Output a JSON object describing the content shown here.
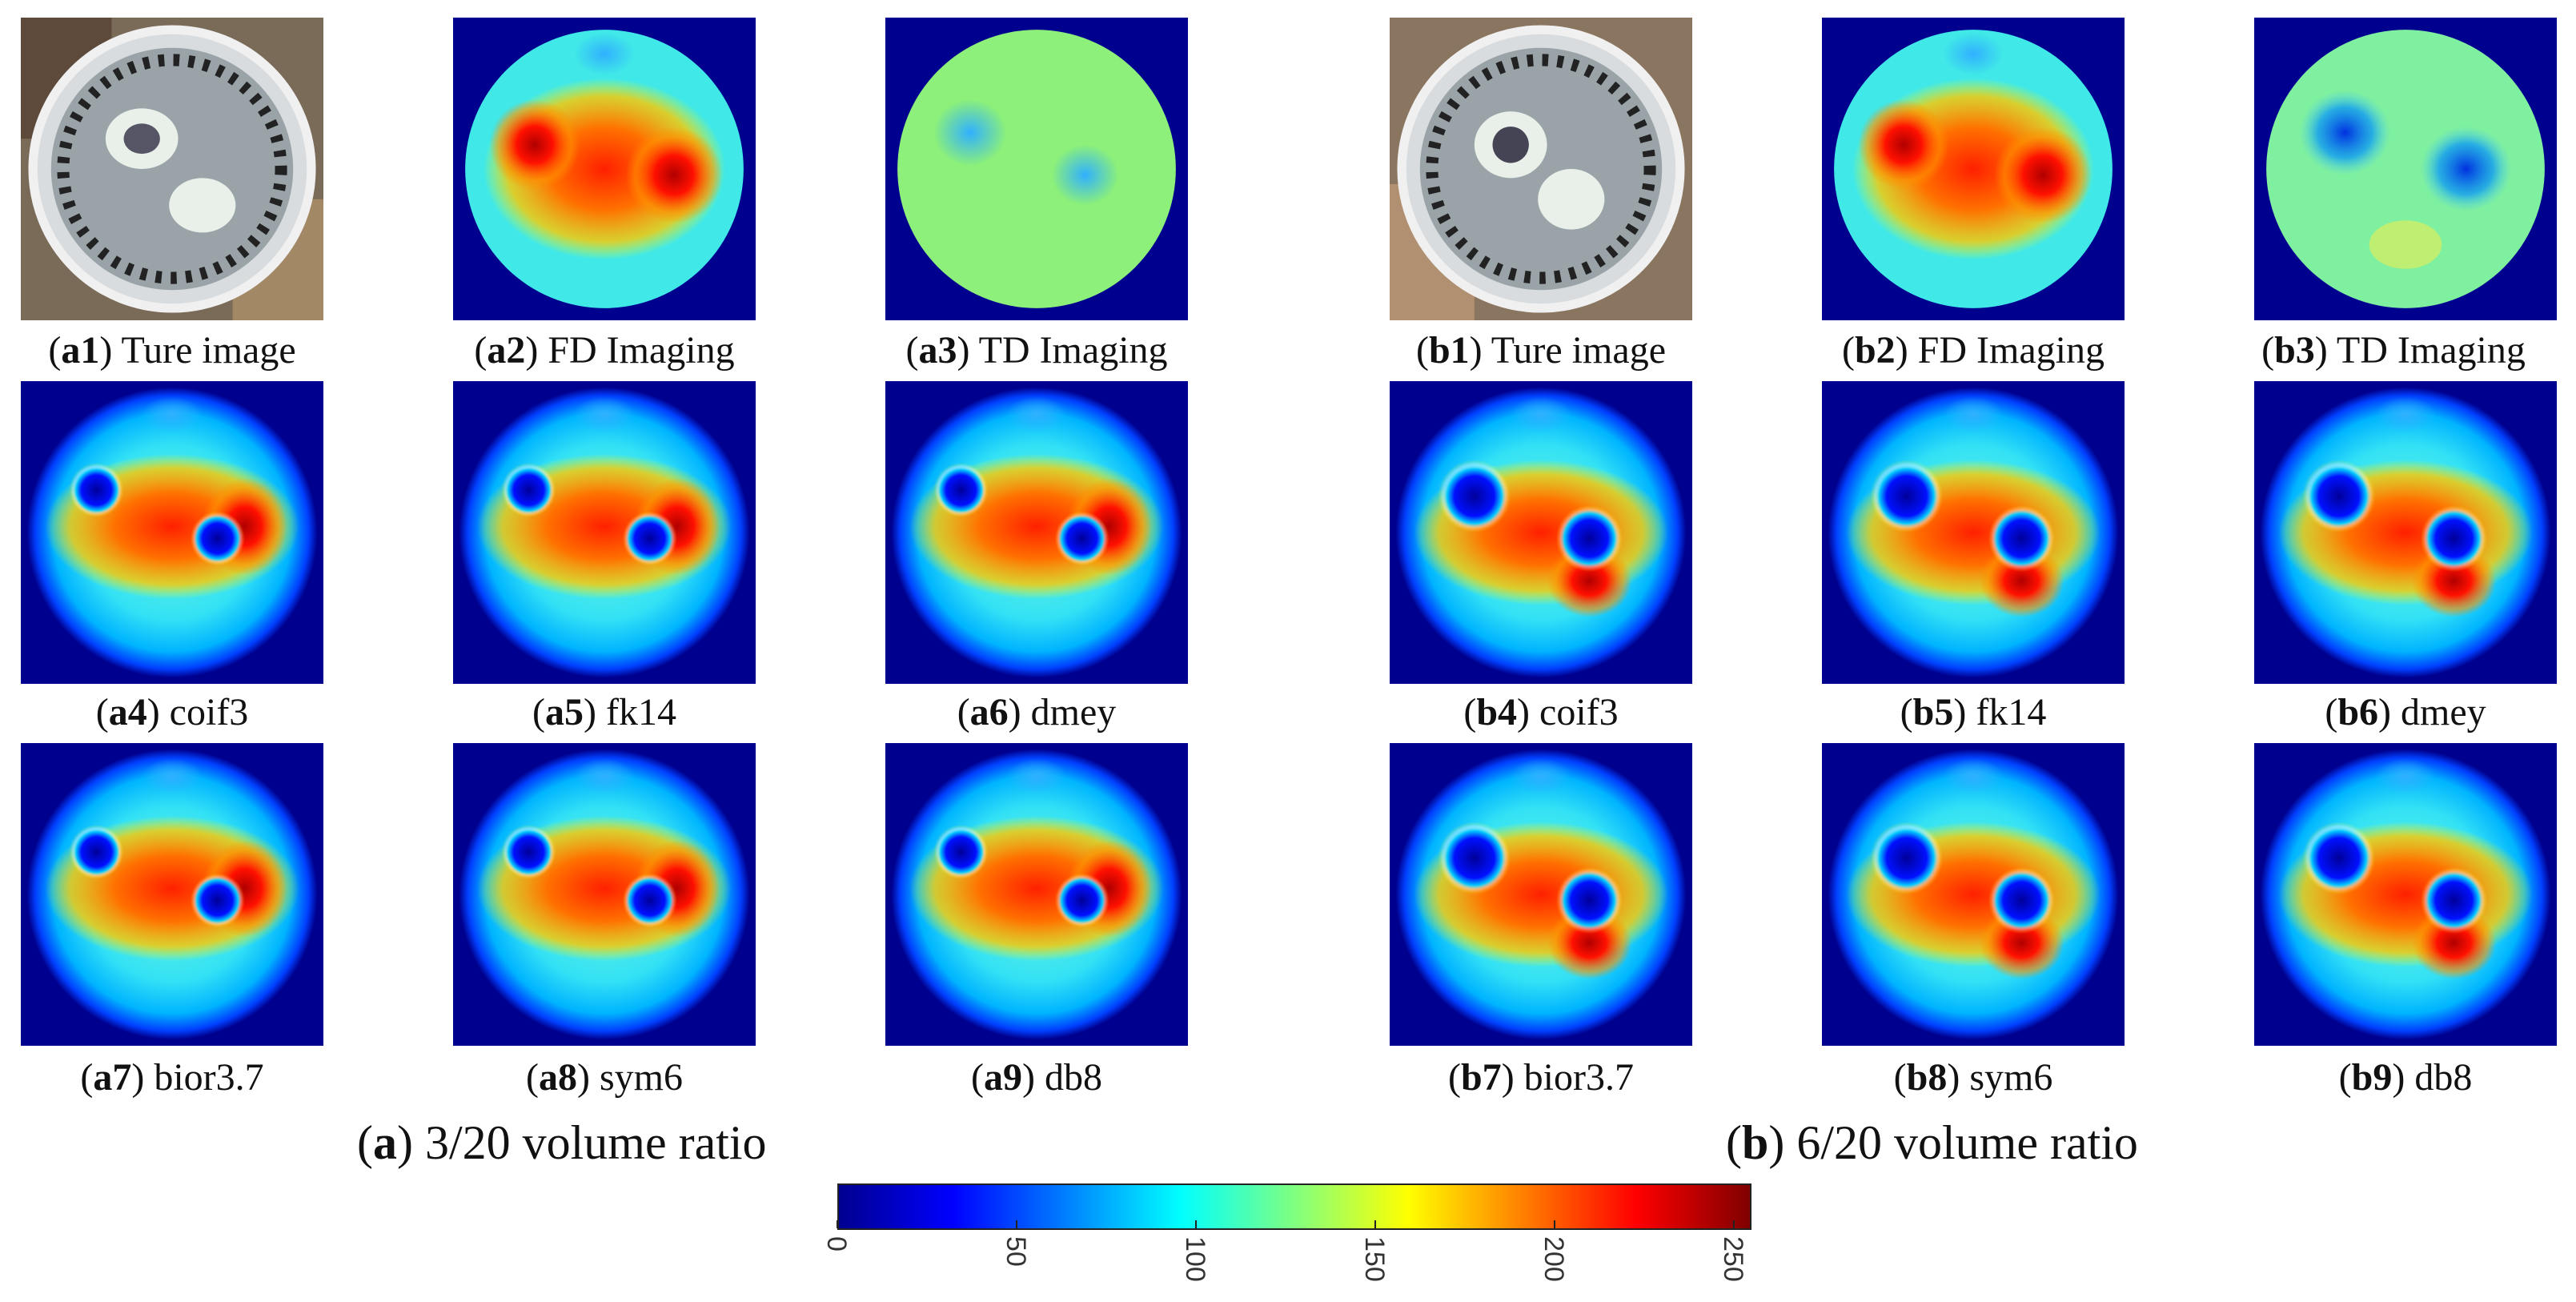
{
  "colors": {
    "background_dark_blue": "#00008f",
    "cyan": "#4fe6f0",
    "red": "#d80000"
  },
  "panels": [
    {
      "id": "a1",
      "label": "a1",
      "text": "Ture image",
      "kind": "photo"
    },
    {
      "id": "a2",
      "label": "a2",
      "text": "FD Imaging",
      "kind": "fd"
    },
    {
      "id": "a3",
      "label": "a3",
      "text": "TD Imaging",
      "kind": "td"
    },
    {
      "id": "b1",
      "label": "b1",
      "text": "Ture image",
      "kind": "photo"
    },
    {
      "id": "b2",
      "label": "b2",
      "text": "FD Imaging",
      "kind": "fd"
    },
    {
      "id": "b3",
      "label": "b3",
      "text": "TD Imaging",
      "kind": "td"
    },
    {
      "id": "a4",
      "label": "a4",
      "text": "coif3",
      "kind": "wave"
    },
    {
      "id": "a5",
      "label": "a5",
      "text": "fk14",
      "kind": "wave"
    },
    {
      "id": "a6",
      "label": "a6",
      "text": "dmey",
      "kind": "wave"
    },
    {
      "id": "b4",
      "label": "b4",
      "text": "coif3",
      "kind": "wave"
    },
    {
      "id": "b5",
      "label": "b5",
      "text": "fk14",
      "kind": "wave"
    },
    {
      "id": "b6",
      "label": "b6",
      "text": "dmey",
      "kind": "wave"
    },
    {
      "id": "a7",
      "label": "a7",
      "text": "bior3.7",
      "kind": "wave"
    },
    {
      "id": "a8",
      "label": "a8",
      "text": "sym6",
      "kind": "wave"
    },
    {
      "id": "a9",
      "label": "a9",
      "text": "db8",
      "kind": "wave"
    },
    {
      "id": "b7",
      "label": "b7",
      "text": "bior3.7",
      "kind": "wave"
    },
    {
      "id": "b8",
      "label": "b8",
      "text": "sym6",
      "kind": "wave"
    },
    {
      "id": "b9",
      "label": "b9",
      "text": "db8",
      "kind": "wave"
    }
  ],
  "groups": [
    {
      "label": "a",
      "text": "3/20 volume ratio"
    },
    {
      "label": "b",
      "text": "6/20 volume ratio"
    }
  ],
  "colorbar": {
    "min": 0,
    "max": 255,
    "ticks": [
      "0",
      "50",
      "100",
      "150",
      "200",
      "250"
    ]
  }
}
